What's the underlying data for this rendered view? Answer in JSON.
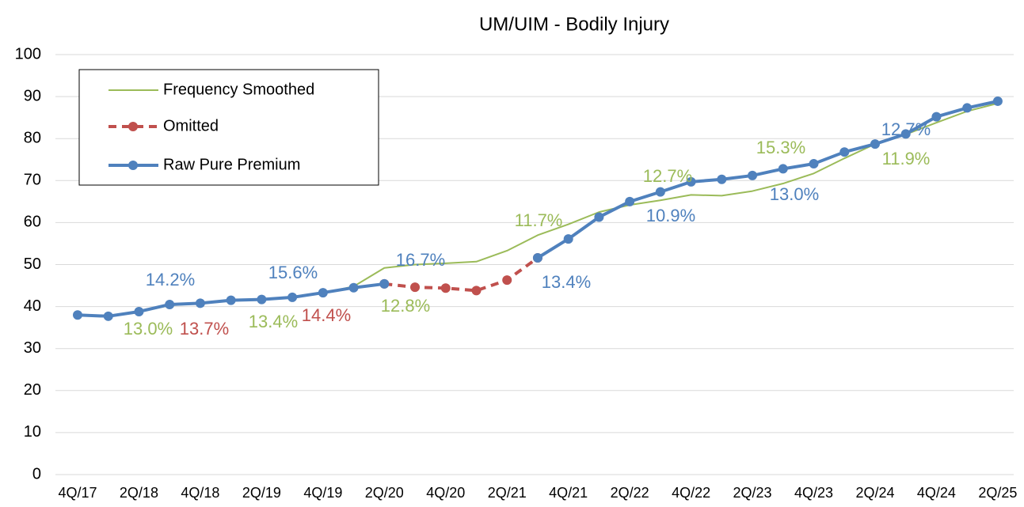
{
  "chart_data": {
    "type": "line",
    "title": "UM/UIM - Bodily Injury",
    "categories": [
      "4Q/17",
      null,
      "2Q/18",
      null,
      "4Q/18",
      null,
      "2Q/19",
      null,
      "4Q/19",
      null,
      "2Q/20",
      null,
      "4Q/20",
      null,
      "2Q/21",
      null,
      "4Q/21",
      null,
      "2Q/22",
      null,
      "4Q/22",
      null,
      "2Q/23",
      null,
      "4Q/23",
      null,
      "2Q/24",
      null,
      "4Q/24",
      null,
      "2Q/25"
    ],
    "series": [
      {
        "name": "Frequency Smoothed",
        "color": "#9bbb59",
        "style": "thin",
        "values": [
          38,
          37.8,
          38.7,
          40.3,
          40.7,
          41.4,
          41.6,
          42.1,
          43.2,
          44.8,
          49.2,
          50.0,
          50.3,
          50.7,
          53.3,
          57.0,
          59.6,
          62.5,
          64.2,
          65.3,
          66.6,
          66.4,
          67.5,
          69.3,
          71.7,
          75.3,
          78.7,
          81.0,
          83.8,
          86.5,
          88.4
        ]
      },
      {
        "name": "Omitted",
        "color": "#c0504d",
        "style": "dashed",
        "values": [
          null,
          null,
          null,
          null,
          null,
          null,
          null,
          null,
          null,
          null,
          45.4,
          44.6,
          44.4,
          43.8,
          46.3,
          51.6,
          null,
          null,
          null,
          null,
          null,
          null,
          null,
          null,
          null,
          null,
          null,
          null,
          null,
          null,
          null
        ]
      },
      {
        "name": "Raw Pure Premium",
        "color": "#4f81bd",
        "style": "thick",
        "values": [
          38,
          37.7,
          38.8,
          40.5,
          40.8,
          41.5,
          41.7,
          42.2,
          43.3,
          44.5,
          45.4,
          null,
          null,
          null,
          null,
          51.6,
          56.1,
          61.3,
          65.0,
          67.3,
          69.7,
          70.3,
          71.2,
          72.8,
          74.0,
          76.8,
          78.7,
          81.1,
          85.2,
          87.3,
          88.9
        ]
      }
    ],
    "ylim": [
      0,
      100
    ],
    "yticks": [
      0,
      10,
      20,
      30,
      40,
      50,
      60,
      70,
      80,
      90,
      100
    ],
    "grid": true,
    "legend": "upper left",
    "annotations": [
      {
        "text": "14.2%",
        "color": "#4f81bd"
      },
      {
        "text": "13.0%",
        "color": "#9bbb59"
      },
      {
        "text": "13.7%",
        "color": "#c0504d"
      },
      {
        "text": "15.6%",
        "color": "#4f81bd"
      },
      {
        "text": "13.4%",
        "color": "#9bbb59"
      },
      {
        "text": "14.4%",
        "color": "#c0504d"
      },
      {
        "text": "16.7%",
        "color": "#4f81bd"
      },
      {
        "text": "12.8%",
        "color": "#9bbb59"
      },
      {
        "text": "11.7%",
        "color": "#9bbb59"
      },
      {
        "text": "13.4%",
        "color": "#4f81bd"
      },
      {
        "text": "12.7%",
        "color": "#9bbb59"
      },
      {
        "text": "10.9%",
        "color": "#4f81bd"
      },
      {
        "text": "15.3%",
        "color": "#9bbb59"
      },
      {
        "text": "13.0%",
        "color": "#4f81bd"
      },
      {
        "text": "12.7%",
        "color": "#4f81bd"
      },
      {
        "text": "11.9%",
        "color": "#9bbb59"
      }
    ]
  }
}
